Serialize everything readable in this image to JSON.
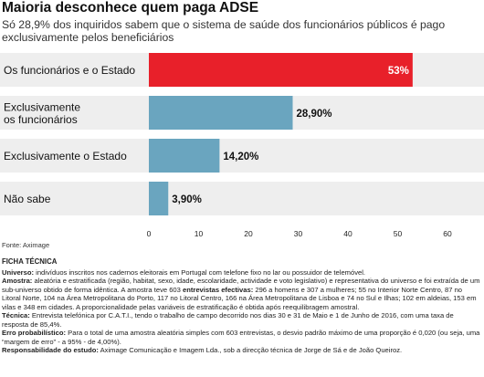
{
  "title": "Maioria desconhece quem paga ADSE",
  "subtitle": "Só 28,9% dos inquiridos sabem que o sistema de saúde dos funcionários públicos é pago exclusivamente pelos beneficiários",
  "source": "Fonte: Aximage",
  "colors": {
    "highlight": "#e8202a",
    "bar": "#6aa5bf",
    "panel": "#eeeeee"
  },
  "chart_data": {
    "type": "bar",
    "orientation": "horizontal",
    "categories": [
      [
        "Os funcionários e o Estado"
      ],
      [
        "Exclusivamente",
        "os funcionários"
      ],
      [
        "Exclusivamente o Estado"
      ],
      [
        "Não sabe"
      ]
    ],
    "values": [
      53,
      28.9,
      14.2,
      3.9
    ],
    "value_labels": [
      "53%",
      "28,90%",
      "14,20%",
      "3,90%"
    ],
    "xlim": [
      0,
      60
    ],
    "xticks": [
      0,
      10,
      20,
      30,
      40,
      50,
      60
    ],
    "grid": false,
    "highlight_index": 0
  },
  "tech_sheet": {
    "heading": "FICHA TÉCNICA",
    "items": [
      {
        "label": "Universo:",
        "text": " indivíduos inscritos nos cadernos eleitorais em Portugal com telefone fixo no lar ou possuidor de telemóvel."
      },
      {
        "label": "Amostra:",
        "text": " aleatória e estratificada (região, habitat, sexo, idade, escolaridade, actividade e voto legislativo) e representativa do universo e foi extraída de um sub-universo obtido de forma idêntica. A amostra teve 603 ",
        "bold2": "entrevistas efectivas:",
        "text2": " 296 a homens e 307 a mulheres; 55 no Interior Norte Centro, 87 no Litoral Norte, 104 na Área Metropolitana do Porto, 117 no Litoral Centro, 166 na Área Metropolitana de Lisboa e 74 no Sul e Ilhas; 102 em aldeias, 153 em vilas e 348 em cidades. A proporcionalidade pelas variáveis de estratificação é obtida após reequilibragem amostral."
      },
      {
        "label": "Técnica:",
        "text": " Entrevista telefónica por C.A.T.I., tendo o trabalho de campo decorrido nos dias 30 e 31 de Maio e 1 de Junho de 2016, com uma taxa de resposta de 85,4%."
      },
      {
        "label": "Erro probabilístico:",
        "text": " Para o total de uma amostra aleatória simples com 603 entrevistas, o desvio padrão máximo de uma proporção é 0,020 (ou seja, uma “margem de erro” - a 95% - de 4,00%)."
      },
      {
        "label": "Responsabilidade do estudo:",
        "text": " Aximage Comunicação e Imagem Lda., sob a direcção técnica de Jorge de Sá e de João Queiroz."
      }
    ]
  }
}
